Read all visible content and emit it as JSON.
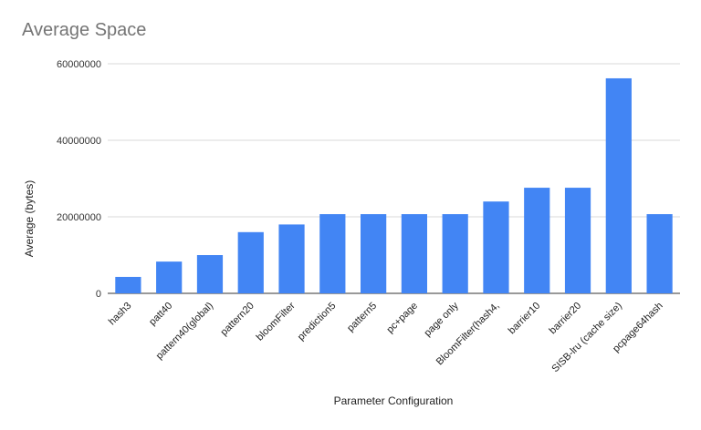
{
  "chart_data": {
    "type": "bar",
    "title": "Average Space",
    "xlabel": "Parameter Configuration",
    "ylabel": "Average (bytes)",
    "ylim": [
      0,
      60000000
    ],
    "yticks": [
      "0",
      "20000000",
      "40000000",
      "60000000"
    ],
    "grid": true,
    "bar_color": "#4285F4",
    "categories": [
      "hash3",
      "patt40",
      "pattern40(global)",
      "pattern20",
      "bloomFilter",
      "prediction5",
      "pattern5",
      "pc+page",
      "page only",
      "BloomFilter(hash4,",
      "barrier10",
      "barrier20",
      "SISB-lru (cache size)",
      "pcpage64hash"
    ],
    "values": [
      4300000,
      8300000,
      10000000,
      16000000,
      18000000,
      20700000,
      20700000,
      20700000,
      20700000,
      24000000,
      27600000,
      27600000,
      56200000,
      20700000
    ]
  }
}
